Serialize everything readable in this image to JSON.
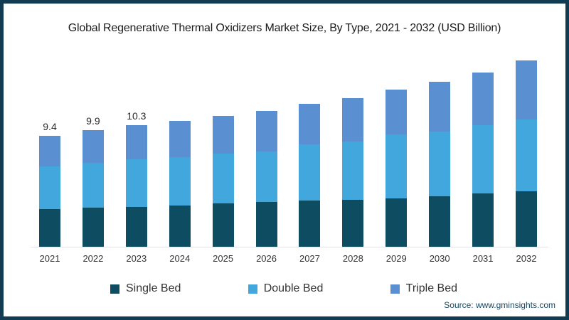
{
  "title": "Global Regenerative Thermal Oxidizers Market Size, By Type, 2021 - 2032 (USD Billion)",
  "source": "Source: www.gminsights.com",
  "colors": {
    "single_bed": "#0e4c62",
    "double_bed": "#41a7dd",
    "triple_bed": "#5a90d2",
    "frame": "#113c51",
    "axis_line": "#e4e4e4"
  },
  "legend": [
    {
      "label": "Single Bed",
      "color_key": "single_bed"
    },
    {
      "label": "Double Bed",
      "color_key": "double_bed"
    },
    {
      "label": "Triple Bed",
      "color_key": "triple_bed"
    }
  ],
  "chart_data": {
    "type": "bar",
    "stacked": true,
    "title": "Global Regenerative Thermal Oxidizers Market Size, By Type, 2021 - 2032 (USD Billion)",
    "xlabel": "",
    "ylabel": "USD Billion",
    "ylim": [
      0,
      17
    ],
    "grid": false,
    "legend_position": "bottom",
    "categories": [
      "2021",
      "2022",
      "2023",
      "2024",
      "2025",
      "2026",
      "2027",
      "2028",
      "2029",
      "2030",
      "2031",
      "2032"
    ],
    "series": [
      {
        "name": "Single Bed",
        "color_key": "single_bed",
        "values": [
          3.2,
          3.3,
          3.4,
          3.5,
          3.7,
          3.8,
          3.9,
          4.0,
          4.1,
          4.3,
          4.5,
          4.7
        ]
      },
      {
        "name": "Double Bed",
        "color_key": "double_bed",
        "values": [
          3.6,
          3.8,
          4.0,
          4.1,
          4.2,
          4.3,
          4.8,
          4.9,
          5.4,
          5.5,
          5.8,
          6.1
        ]
      },
      {
        "name": "Triple Bed",
        "color_key": "triple_bed",
        "values": [
          2.6,
          2.8,
          2.9,
          3.1,
          3.2,
          3.4,
          3.4,
          3.7,
          3.8,
          4.2,
          4.5,
          5.0
        ]
      }
    ],
    "totals": [
      9.4,
      9.9,
      10.3,
      10.7,
      11.1,
      11.5,
      12.1,
      12.6,
      13.3,
      14.0,
      14.8,
      15.8
    ],
    "total_labels": [
      "9.4",
      "9.9",
      "10.3",
      "",
      "",
      "",
      "",
      "",
      "",
      "",
      "",
      ""
    ]
  }
}
